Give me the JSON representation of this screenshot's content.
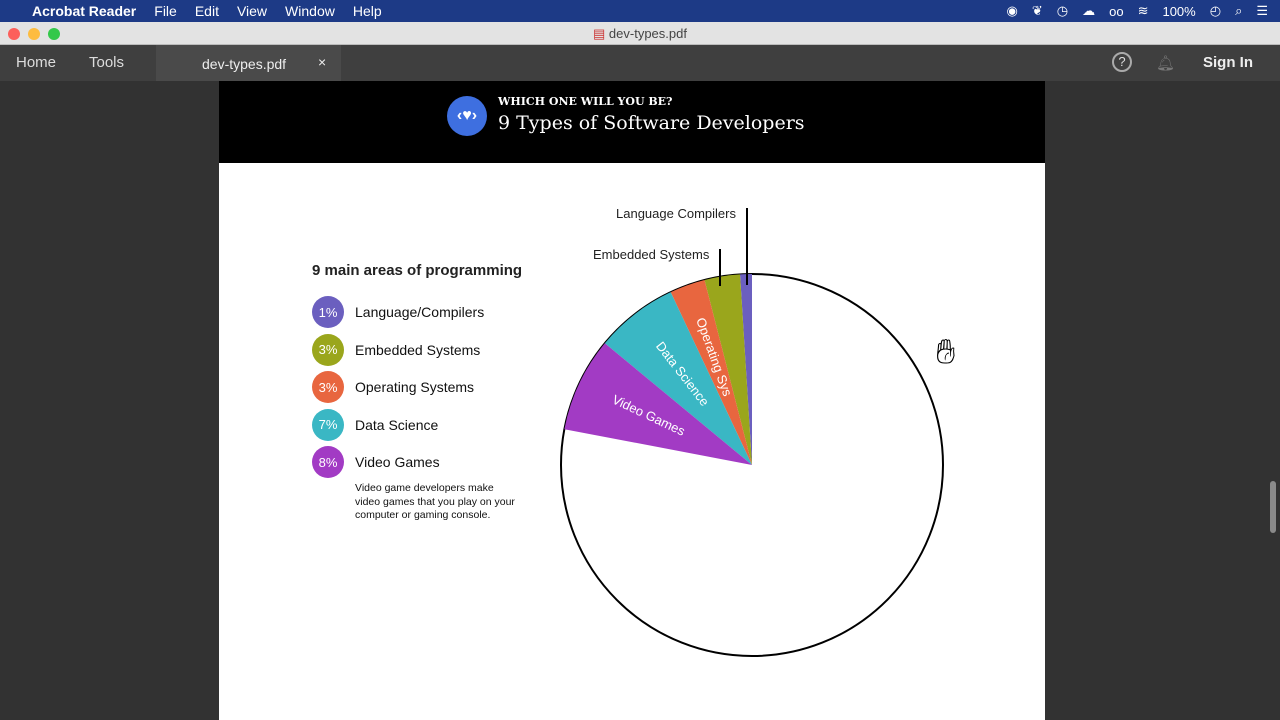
{
  "menubar": {
    "app": "Acrobat Reader",
    "items": [
      "File",
      "Edit",
      "View",
      "Window",
      "Help"
    ],
    "battery": "100%"
  },
  "window": {
    "title": "dev-types.pdf"
  },
  "toolbar": {
    "home": "Home",
    "tools": "Tools",
    "tab": "dev-types.pdf",
    "sign_in": "Sign In"
  },
  "document": {
    "kicker": "WHICH ONE WILL YOU BE?",
    "title": "9 Types of Software Developers",
    "legend_title": "9 main areas of programming",
    "description": "Video game developers make video games that you play on your computer or gaming console.",
    "callouts": [
      "Language Compilers",
      "Embedded Systems"
    ]
  },
  "chart_data": {
    "type": "pie",
    "title": "9 main areas of programming",
    "slices": [
      {
        "name": "Language/Compilers",
        "value": 1,
        "label": "1%",
        "color": "#6b5fbf",
        "slice_label": ""
      },
      {
        "name": "Embedded Systems",
        "value": 3,
        "label": "3%",
        "color": "#9aa61c",
        "slice_label": ""
      },
      {
        "name": "Operating Systems",
        "value": 3,
        "label": "3%",
        "color": "#e8663f",
        "slice_label": "Operating Sys"
      },
      {
        "name": "Data Science",
        "value": 7,
        "label": "7%",
        "color": "#3ab7c4",
        "slice_label": "Data Science"
      },
      {
        "name": "Video Games",
        "value": 8,
        "label": "8%",
        "color": "#a23bc4",
        "slice_label": "Video Games"
      }
    ],
    "remaining_color": "#ffffff"
  }
}
